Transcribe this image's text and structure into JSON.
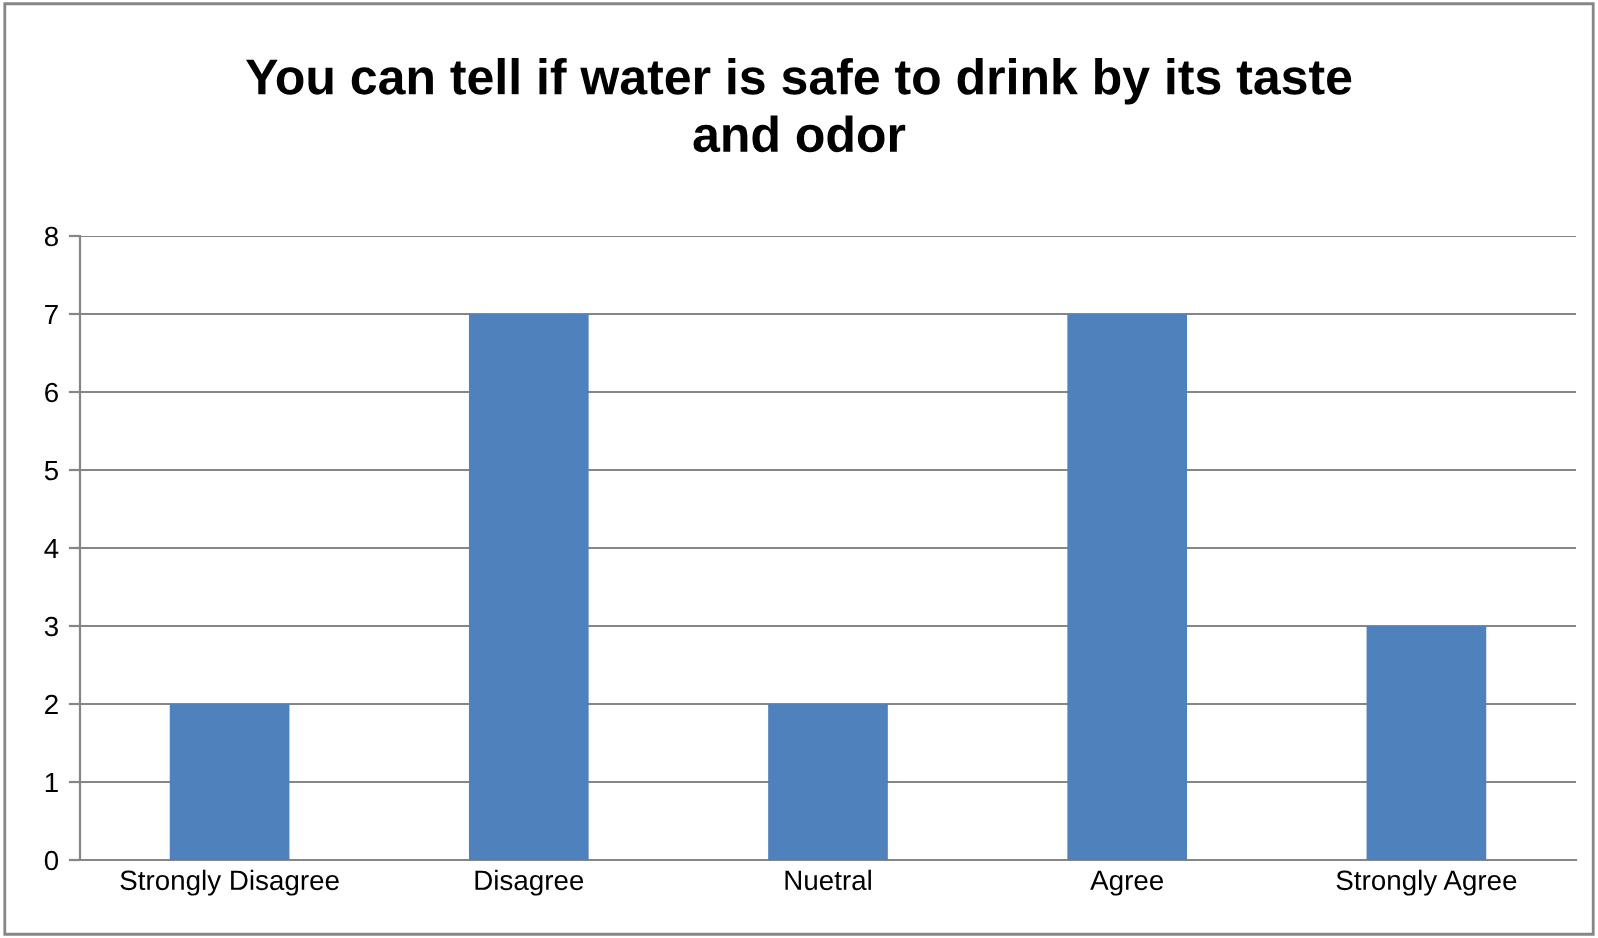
{
  "chart_data": {
    "type": "bar",
    "title": "You can tell if water is safe to drink by its taste\nand odor",
    "categories": [
      "Strongly Disagree",
      "Disagree",
      "Nuetral",
      "Agree",
      "Strongly Agree"
    ],
    "values": [
      2,
      7,
      2,
      7,
      3
    ],
    "color": "#4f81bd",
    "ylim": [
      0,
      8
    ],
    "yticks": [
      0,
      1,
      2,
      3,
      4,
      5,
      6,
      7,
      8
    ],
    "grid": "y"
  }
}
